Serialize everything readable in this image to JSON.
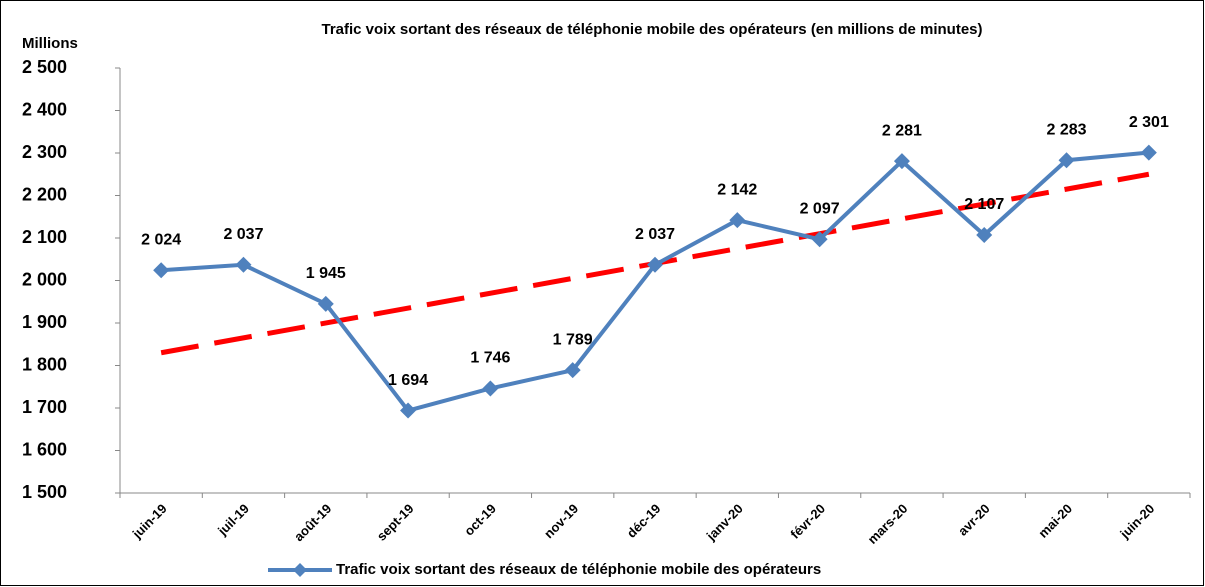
{
  "chart_data": {
    "type": "line",
    "title": "Trafic voix sortant des réseaux de téléphonie mobile des  opérateurs (en millions de minutes)",
    "y_label": "Millions",
    "categories": [
      "juin-19",
      "juil-19",
      "août-19",
      "sept-19",
      "oct-19",
      "nov-19",
      "déc-19",
      "janv-20",
      "févr-20",
      "mars-20",
      "avr-20",
      "mai-20",
      "juin-20"
    ],
    "series": [
      {
        "name": "Trafic voix sortant des réseaux  de téléphonie mobile des opérateurs",
        "color": "#4f81bd",
        "values": [
          2024,
          2037,
          1945,
          1694,
          1746,
          1789,
          2037,
          2142,
          2097,
          2281,
          2107,
          2283,
          2301
        ],
        "value_labels": [
          "2 024",
          "2 037",
          "1 945",
          "1 694",
          "1 746",
          "1 789",
          "2 037",
          "2 142",
          "2 097",
          "2 281",
          "2 107",
          "2 283",
          "2 301"
        ]
      }
    ],
    "trendline": {
      "color": "#ff0000",
      "values": [
        1830,
        2250
      ]
    },
    "ylim": [
      1500,
      2500
    ],
    "yticks": [
      {
        "value": 1500,
        "label": "1 500"
      },
      {
        "value": 1600,
        "label": "1 600"
      },
      {
        "value": 1700,
        "label": "1 700"
      },
      {
        "value": 1800,
        "label": "1 800"
      },
      {
        "value": 1900,
        "label": "1 900"
      },
      {
        "value": 2000,
        "label": "2 000"
      },
      {
        "value": 2100,
        "label": "2 100"
      },
      {
        "value": 2200,
        "label": "2 200"
      },
      {
        "value": 2300,
        "label": "2 300"
      },
      {
        "value": 2400,
        "label": "2 400"
      },
      {
        "value": 2500,
        "label": "2 500"
      }
    ],
    "legend": "bottom"
  }
}
